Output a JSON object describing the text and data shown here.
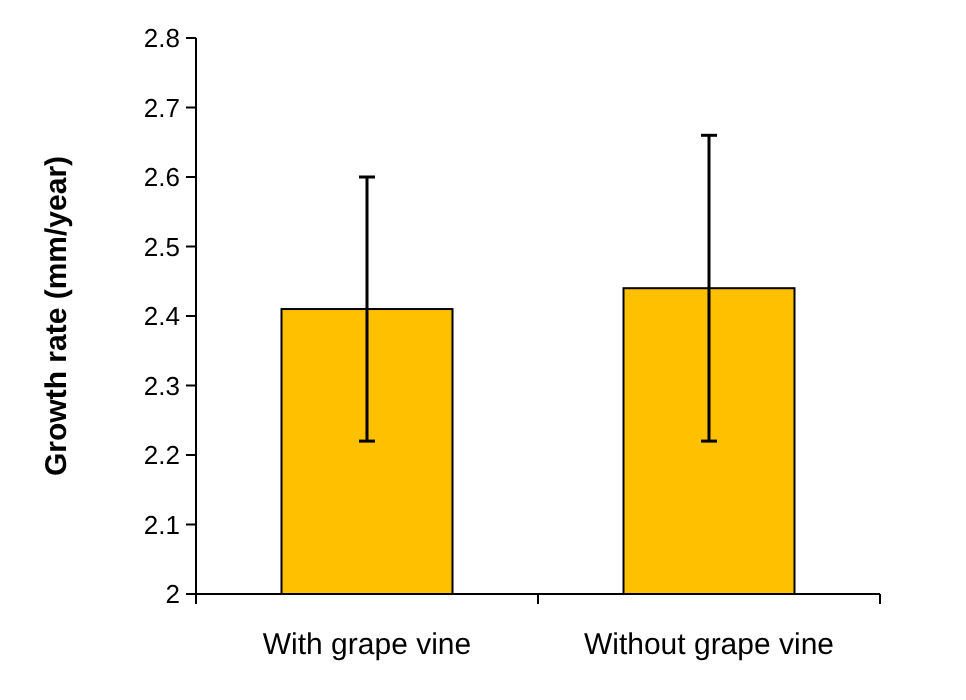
{
  "chart_data": {
    "type": "bar",
    "ylabel": "Growth rate (mm/year)",
    "categories": [
      "With grape vine",
      "Without grape vine"
    ],
    "values": [
      2.41,
      2.44
    ],
    "errors": [
      0.19,
      0.22
    ],
    "color": "#ffc000",
    "ylim": [
      2,
      2.8
    ],
    "yticks": [
      2,
      2.1,
      2.2,
      2.3,
      2.4,
      2.5,
      2.6,
      2.7,
      2.8
    ],
    "grid": false
  }
}
